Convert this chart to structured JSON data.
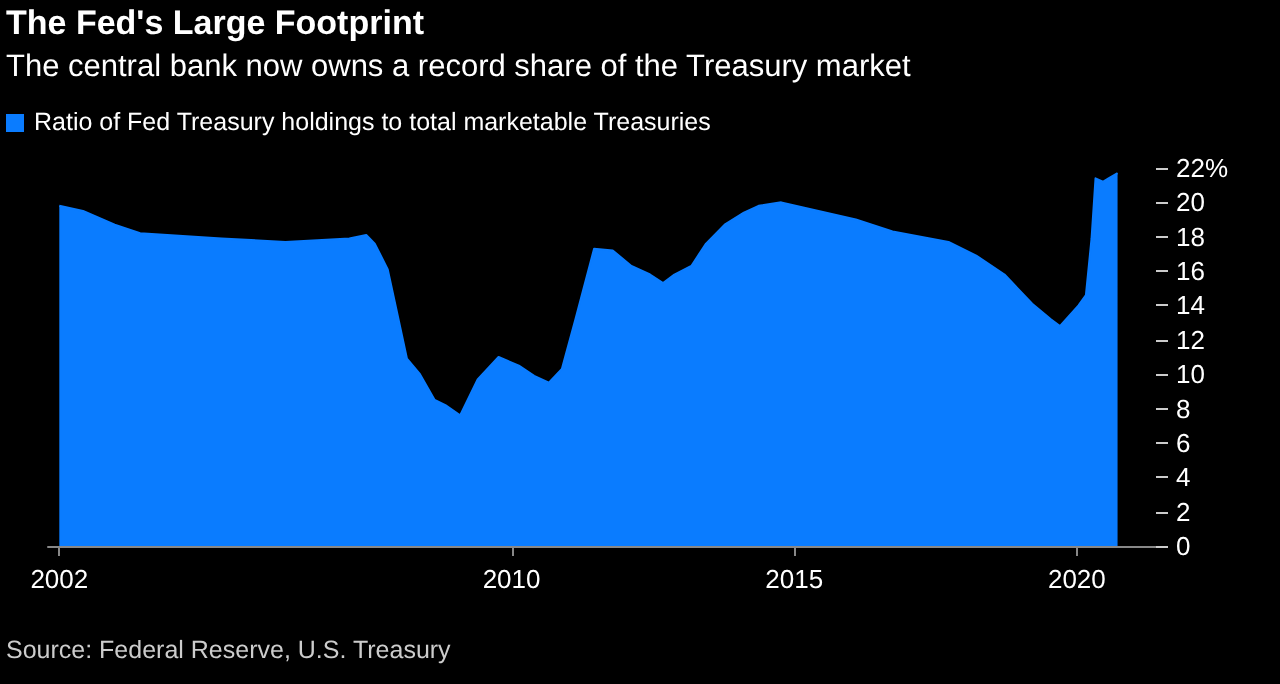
{
  "chart_data": {
    "type": "area",
    "title": "The Fed's Large Footprint",
    "subtitle": "The central bank now owns a record share of the Treasury market",
    "x": [
      2002.0,
      2002.42,
      2002.98,
      2003.43,
      2004.87,
      2006.0,
      2007.13,
      2007.43,
      2007.58,
      2007.81,
      2008.0,
      2008.15,
      2008.38,
      2008.64,
      2008.83,
      2009.09,
      2009.4,
      2009.77,
      2010.13,
      2010.4,
      2010.66,
      2010.89,
      2011.13,
      2011.46,
      2011.79,
      2012.12,
      2012.45,
      2012.68,
      2012.88,
      2013.18,
      2013.44,
      2013.77,
      2014.11,
      2014.37,
      2014.77,
      2015.43,
      2016.09,
      2016.74,
      2017.4,
      2017.73,
      2018.22,
      2018.72,
      2019.21,
      2019.54,
      2019.7,
      2020.03,
      2020.16,
      2020.26,
      2020.33,
      2020.46,
      2020.56,
      2020.72
    ],
    "series": [
      {
        "name": "Ratio of Fed Treasury holdings to total marketable Treasuries",
        "color": "#0a7cff",
        "values": [
          19.8,
          19.5,
          18.7,
          18.2,
          17.9,
          17.7,
          17.9,
          18.1,
          17.6,
          16.1,
          13.2,
          10.9,
          10.0,
          8.5,
          8.2,
          7.6,
          9.7,
          11.0,
          10.5,
          9.9,
          9.5,
          10.3,
          13.2,
          17.3,
          17.2,
          16.3,
          15.8,
          15.3,
          15.8,
          16.3,
          17.6,
          18.7,
          19.4,
          19.8,
          20.0,
          19.5,
          19.0,
          18.3,
          17.9,
          17.7,
          16.9,
          15.8,
          14.1,
          13.2,
          12.8,
          14.0,
          14.6,
          17.9,
          21.4,
          21.2,
          21.4,
          21.7
        ]
      }
    ],
    "xlim": [
      2001.8,
      2021.4
    ],
    "xticks": [
      2002,
      2010,
      2015,
      2020
    ],
    "ylim": [
      0,
      22
    ],
    "yticks": [
      0,
      2,
      4,
      6,
      8,
      10,
      12,
      14,
      16,
      18,
      20,
      {
        "value": 22,
        "label": "22%"
      }
    ],
    "grid": false,
    "legend": "top left",
    "annotations": [
      "Source: Federal Reserve, U.S. Treasury"
    ]
  }
}
